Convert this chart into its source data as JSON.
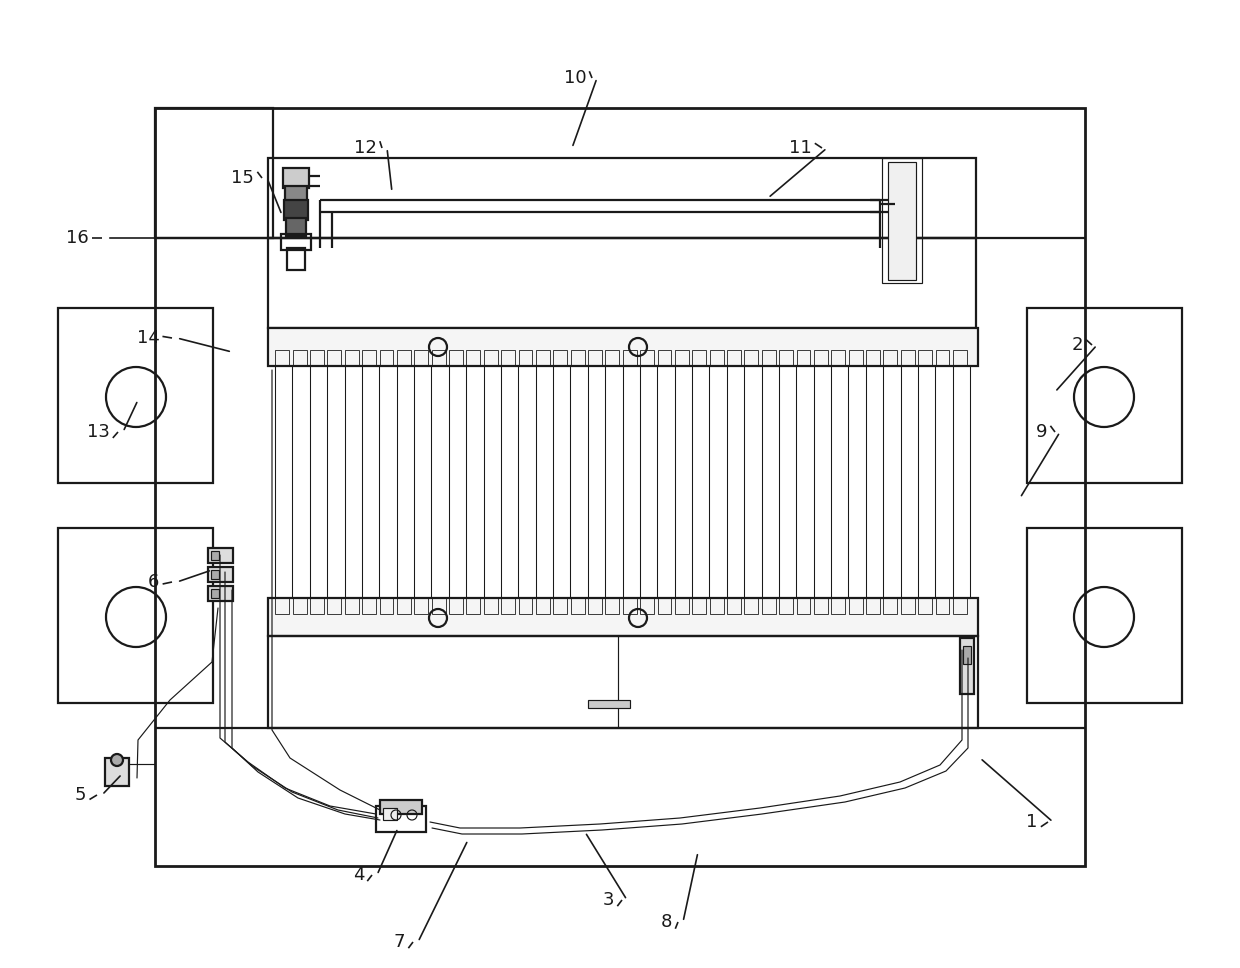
{
  "bg": "#ffffff",
  "lc": "#1a1a1a",
  "lw": 1.6,
  "lwt": 0.85,
  "lwk": 2.0,
  "fs": 13,
  "annotations": [
    [
      "1",
      1048,
      822,
      980,
      758
    ],
    [
      "2",
      1092,
      345,
      1055,
      392
    ],
    [
      "3",
      622,
      900,
      585,
      832
    ],
    [
      "4",
      372,
      875,
      398,
      828
    ],
    [
      "5",
      97,
      795,
      122,
      774
    ],
    [
      "6",
      172,
      582,
      212,
      570
    ],
    [
      "7",
      413,
      942,
      468,
      840
    ],
    [
      "8",
      678,
      922,
      698,
      852
    ],
    [
      "9",
      1055,
      432,
      1020,
      498
    ],
    [
      "10",
      592,
      78,
      572,
      148
    ],
    [
      "11",
      822,
      148,
      768,
      198
    ],
    [
      "12",
      382,
      148,
      392,
      192
    ],
    [
      "13",
      118,
      432,
      138,
      400
    ],
    [
      "14",
      172,
      338,
      232,
      352
    ],
    [
      "15",
      262,
      178,
      282,
      215
    ],
    [
      "16",
      102,
      238,
      165,
      238
    ]
  ]
}
